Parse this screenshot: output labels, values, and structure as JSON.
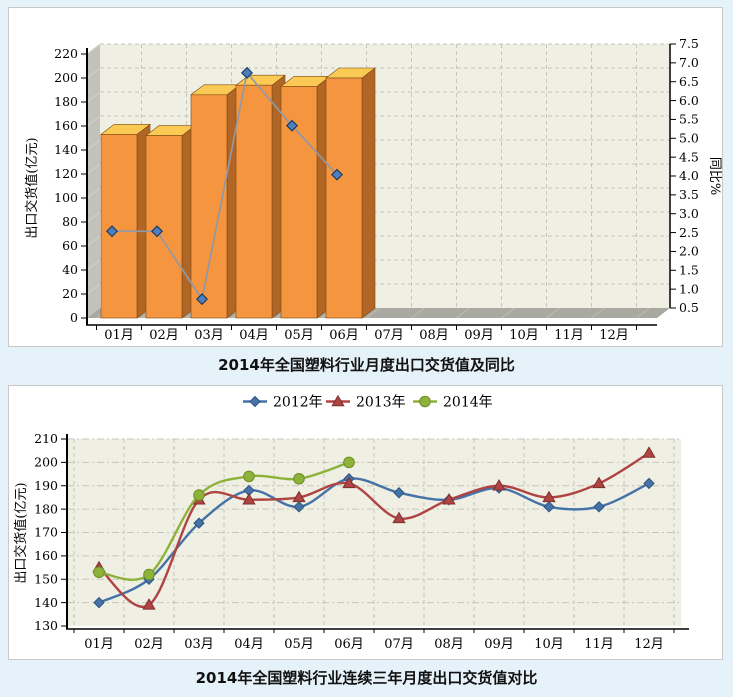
{
  "page": {
    "background": "#E6F2FA",
    "panel_background": "#FFFFFF",
    "panel_border": "#C9C9C9"
  },
  "chart_data": [
    {
      "type": "bar",
      "subtype": "3d-bar-with-line",
      "title": "2014年全国塑料行业月度出口交货值及同比",
      "categories": [
        "01月",
        "02月",
        "03月",
        "04月",
        "05月",
        "06月",
        "07月",
        "08月",
        "09月",
        "10月",
        "11月",
        "12月"
      ],
      "plot_bg": "#EFEFE3",
      "wall_color": "#C2C2BA",
      "floor_color": "#A9A9A1",
      "grid_color": "#C6C6BD",
      "axis_color": "#000000",
      "left_axis": {
        "label": "出口交货值(亿元)",
        "min": 0,
        "max": 220,
        "step": 20
      },
      "right_axis": {
        "label": "同比%",
        "min": 0.5,
        "max": 7.5,
        "step": 0.5
      },
      "legend": null,
      "series": [
        {
          "name": "出口交货值",
          "kind": "bar",
          "axis": "left",
          "values": [
            153,
            152,
            186,
            194,
            193,
            200,
            null,
            null,
            null,
            null,
            null,
            null
          ],
          "color_front": "#F5953F",
          "color_top": "#FBCA55",
          "color_side": "#B26625",
          "color_edge": "#7B4A12"
        },
        {
          "name": "同比",
          "kind": "line",
          "axis": "right",
          "values": [
            2.8,
            2.8,
            1.0,
            7.0,
            5.6,
            4.3,
            null,
            null,
            null,
            null,
            null,
            null
          ],
          "line_color": "#9099A6",
          "marker": "diamond",
          "marker_fill": "#4D7EBE",
          "marker_stroke": "#16365C"
        }
      ]
    },
    {
      "type": "line",
      "subtype": "smooth-line",
      "title": "2014年全国塑料行业连续三年月度出口交货值对比",
      "categories": [
        "01月",
        "02月",
        "03月",
        "04月",
        "05月",
        "06月",
        "07月",
        "08月",
        "09月",
        "10月",
        "11月",
        "12月"
      ],
      "plot_bg": "#EFEFE3",
      "grid_color": "#C6C6BD",
      "axis_color": "#000000",
      "y_axis": {
        "label": "出口交货值(亿元)",
        "min": 130,
        "max": 210,
        "step": 10
      },
      "legend_position": "top",
      "series": [
        {
          "name": "2012年",
          "marker": "diamond",
          "color": "#4572A7",
          "marker_stroke": "#2F5580",
          "values": [
            140,
            150,
            174,
            188,
            181,
            193,
            187,
            184,
            189,
            181,
            181,
            191
          ]
        },
        {
          "name": "2013年",
          "marker": "triangle",
          "color": "#AF4442",
          "marker_stroke": "#7E2F2E",
          "values": [
            155,
            139,
            184,
            184,
            185,
            191,
            176,
            184,
            190,
            185,
            191,
            204
          ]
        },
        {
          "name": "2014年",
          "marker": "circle",
          "color": "#8DB23A",
          "marker_stroke": "#6E8F25",
          "values": [
            153,
            152,
            186,
            194,
            193,
            200,
            null,
            null,
            null,
            null,
            null,
            null
          ]
        }
      ]
    }
  ]
}
